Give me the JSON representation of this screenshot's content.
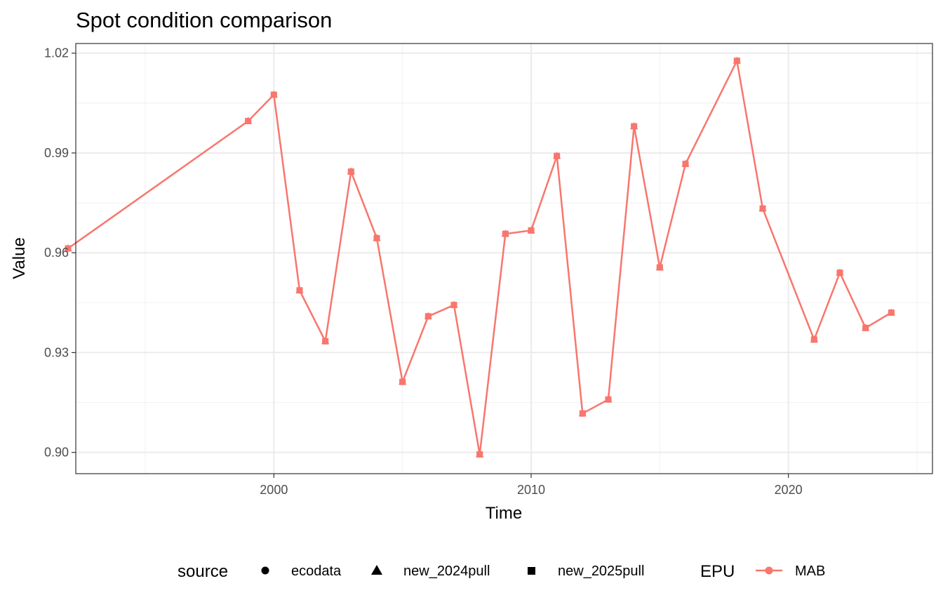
{
  "chart_data": {
    "type": "line",
    "title": "Spot condition comparison",
    "xlabel": "Time",
    "ylabel": "Value",
    "xlim": [
      1992.3,
      2025.6
    ],
    "ylim": [
      0.8936,
      1.0229
    ],
    "x_ticks": [
      2000,
      2010,
      2020
    ],
    "x_tick_labels": [
      "2000",
      "2010",
      "2020"
    ],
    "y_ticks": [
      0.9,
      0.93,
      0.96,
      0.99,
      1.02
    ],
    "y_tick_labels": [
      "0.90",
      "0.93",
      "0.96",
      "0.99",
      "1.02"
    ],
    "grid": true,
    "legend_position": "bottom",
    "legends": [
      {
        "title": "source",
        "entries": [
          {
            "label": "ecodata",
            "shape": "circle"
          },
          {
            "label": "new_2024pull",
            "shape": "triangle"
          },
          {
            "label": "new_2025pull",
            "shape": "square"
          }
        ]
      },
      {
        "title": "EPU",
        "entries": [
          {
            "label": "MAB",
            "shape": "line-circle"
          }
        ]
      }
    ],
    "series_color": "#F8766D",
    "series": [
      {
        "name": "MAB",
        "x": [
          1992,
          1999,
          2000,
          2001,
          2002,
          2003,
          2004,
          2005,
          2006,
          2007,
          2008,
          2009,
          2010,
          2011,
          2012,
          2013,
          2014,
          2015,
          2016,
          2017,
          2018,
          2019,
          2021,
          2022,
          2023,
          2024
        ],
        "y": [
          0.9613,
          0.9996,
          1.0075,
          0.9487,
          0.9334,
          0.9844,
          0.9644,
          0.9212,
          0.9409,
          0.9443,
          0.8994,
          0.9657,
          0.9667,
          0.9891,
          0.9117,
          0.9159,
          0.998,
          0.9556,
          0.9867,
          null,
          1.0177,
          0.9733,
          0.9339,
          0.954,
          0.9374,
          0.942
        ]
      }
    ]
  }
}
